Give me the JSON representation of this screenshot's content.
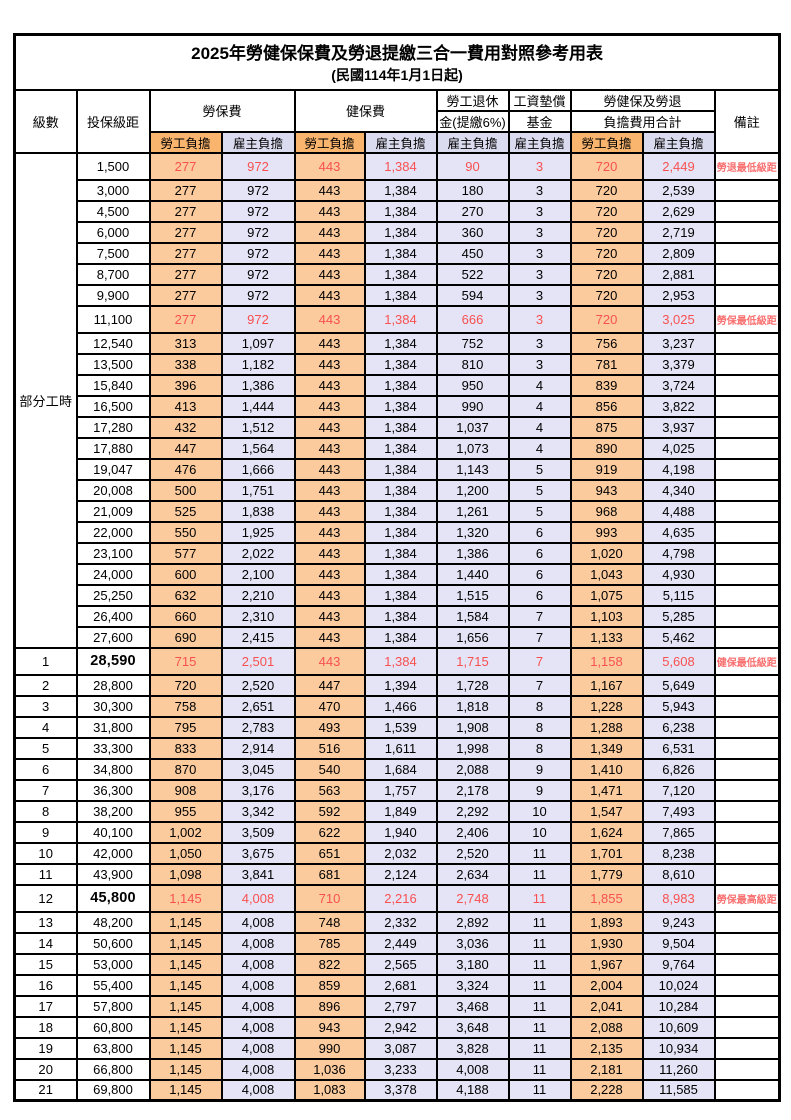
{
  "title": "2025年勞健保保費及勞退提繳三合一費用對照參考用表",
  "subtitle": "(民國114年1月1日起)",
  "header": {
    "level": "級數",
    "bracket": "投保級距",
    "labor_fee": "勞保費",
    "health_fee": "健保費",
    "pension_line1": "勞工退休",
    "pension_line2": "金(提繳6%)",
    "wage_fund_line1": "工資墊償",
    "wage_fund_line2": "基金",
    "total_line1": "勞健保及勞退",
    "total_line2": "負擔費用合計",
    "remark": "備註",
    "employee": "勞工負擔",
    "employer": "雇主負擔"
  },
  "part_time_label": "部分工時",
  "part_time_rowspan": 23,
  "colors": {
    "employee_header_bg": "#f9b56e",
    "employer_header_bg": "#dbdbef",
    "employee_cell_bg": "#fbcb9e",
    "employer_cell_bg": "#e4e4f6",
    "highlight_value_text": "#f85050",
    "remark_text": "#f97070",
    "border": "#000000"
  },
  "rows": [
    {
      "level": "",
      "bracket": "1,500",
      "values": [
        "277",
        "972",
        "443",
        "1,384",
        "90",
        "3",
        "720",
        "2,449"
      ],
      "remark": "勞退最低級距",
      "highlight": true,
      "tall": true,
      "bold_bracket": false
    },
    {
      "level": "",
      "bracket": "3,000",
      "values": [
        "277",
        "972",
        "443",
        "1,384",
        "180",
        "3",
        "720",
        "2,539"
      ],
      "remark": "",
      "highlight": false,
      "tall": false,
      "bold_bracket": false
    },
    {
      "level": "",
      "bracket": "4,500",
      "values": [
        "277",
        "972",
        "443",
        "1,384",
        "270",
        "3",
        "720",
        "2,629"
      ],
      "remark": "",
      "highlight": false,
      "tall": false,
      "bold_bracket": false
    },
    {
      "level": "",
      "bracket": "6,000",
      "values": [
        "277",
        "972",
        "443",
        "1,384",
        "360",
        "3",
        "720",
        "2,719"
      ],
      "remark": "",
      "highlight": false,
      "tall": false,
      "bold_bracket": false
    },
    {
      "level": "",
      "bracket": "7,500",
      "values": [
        "277",
        "972",
        "443",
        "1,384",
        "450",
        "3",
        "720",
        "2,809"
      ],
      "remark": "",
      "highlight": false,
      "tall": false,
      "bold_bracket": false
    },
    {
      "level": "",
      "bracket": "8,700",
      "values": [
        "277",
        "972",
        "443",
        "1,384",
        "522",
        "3",
        "720",
        "2,881"
      ],
      "remark": "",
      "highlight": false,
      "tall": false,
      "bold_bracket": false
    },
    {
      "level": "",
      "bracket": "9,900",
      "values": [
        "277",
        "972",
        "443",
        "1,384",
        "594",
        "3",
        "720",
        "2,953"
      ],
      "remark": "",
      "highlight": false,
      "tall": false,
      "bold_bracket": false
    },
    {
      "level": "",
      "bracket": "11,100",
      "values": [
        "277",
        "972",
        "443",
        "1,384",
        "666",
        "3",
        "720",
        "3,025"
      ],
      "remark": "勞保最低級距",
      "highlight": true,
      "tall": true,
      "bold_bracket": false
    },
    {
      "level": "",
      "bracket": "12,540",
      "values": [
        "313",
        "1,097",
        "443",
        "1,384",
        "752",
        "3",
        "756",
        "3,237"
      ],
      "remark": "",
      "highlight": false,
      "tall": false,
      "bold_bracket": false
    },
    {
      "level": "",
      "bracket": "13,500",
      "values": [
        "338",
        "1,182",
        "443",
        "1,384",
        "810",
        "3",
        "781",
        "3,379"
      ],
      "remark": "",
      "highlight": false,
      "tall": false,
      "bold_bracket": false
    },
    {
      "level": "",
      "bracket": "15,840",
      "values": [
        "396",
        "1,386",
        "443",
        "1,384",
        "950",
        "4",
        "839",
        "3,724"
      ],
      "remark": "",
      "highlight": false,
      "tall": false,
      "bold_bracket": false
    },
    {
      "level": "",
      "bracket": "16,500",
      "values": [
        "413",
        "1,444",
        "443",
        "1,384",
        "990",
        "4",
        "856",
        "3,822"
      ],
      "remark": "",
      "highlight": false,
      "tall": false,
      "bold_bracket": false
    },
    {
      "level": "",
      "bracket": "17,280",
      "values": [
        "432",
        "1,512",
        "443",
        "1,384",
        "1,037",
        "4",
        "875",
        "3,937"
      ],
      "remark": "",
      "highlight": false,
      "tall": false,
      "bold_bracket": false
    },
    {
      "level": "",
      "bracket": "17,880",
      "values": [
        "447",
        "1,564",
        "443",
        "1,384",
        "1,073",
        "4",
        "890",
        "4,025"
      ],
      "remark": "",
      "highlight": false,
      "tall": false,
      "bold_bracket": false
    },
    {
      "level": "",
      "bracket": "19,047",
      "values": [
        "476",
        "1,666",
        "443",
        "1,384",
        "1,143",
        "5",
        "919",
        "4,198"
      ],
      "remark": "",
      "highlight": false,
      "tall": false,
      "bold_bracket": false
    },
    {
      "level": "",
      "bracket": "20,008",
      "values": [
        "500",
        "1,751",
        "443",
        "1,384",
        "1,200",
        "5",
        "943",
        "4,340"
      ],
      "remark": "",
      "highlight": false,
      "tall": false,
      "bold_bracket": false
    },
    {
      "level": "",
      "bracket": "21,009",
      "values": [
        "525",
        "1,838",
        "443",
        "1,384",
        "1,261",
        "5",
        "968",
        "4,488"
      ],
      "remark": "",
      "highlight": false,
      "tall": false,
      "bold_bracket": false
    },
    {
      "level": "",
      "bracket": "22,000",
      "values": [
        "550",
        "1,925",
        "443",
        "1,384",
        "1,320",
        "6",
        "993",
        "4,635"
      ],
      "remark": "",
      "highlight": false,
      "tall": false,
      "bold_bracket": false
    },
    {
      "level": "",
      "bracket": "23,100",
      "values": [
        "577",
        "2,022",
        "443",
        "1,384",
        "1,386",
        "6",
        "1,020",
        "4,798"
      ],
      "remark": "",
      "highlight": false,
      "tall": false,
      "bold_bracket": false
    },
    {
      "level": "",
      "bracket": "24,000",
      "values": [
        "600",
        "2,100",
        "443",
        "1,384",
        "1,440",
        "6",
        "1,043",
        "4,930"
      ],
      "remark": "",
      "highlight": false,
      "tall": false,
      "bold_bracket": false
    },
    {
      "level": "",
      "bracket": "25,250",
      "values": [
        "632",
        "2,210",
        "443",
        "1,384",
        "1,515",
        "6",
        "1,075",
        "5,115"
      ],
      "remark": "",
      "highlight": false,
      "tall": false,
      "bold_bracket": false
    },
    {
      "level": "",
      "bracket": "26,400",
      "values": [
        "660",
        "2,310",
        "443",
        "1,384",
        "1,584",
        "7",
        "1,103",
        "5,285"
      ],
      "remark": "",
      "highlight": false,
      "tall": false,
      "bold_bracket": false
    },
    {
      "level": "",
      "bracket": "27,600",
      "values": [
        "690",
        "2,415",
        "443",
        "1,384",
        "1,656",
        "7",
        "1,133",
        "5,462"
      ],
      "remark": "",
      "highlight": false,
      "tall": false,
      "bold_bracket": false
    },
    {
      "level": "1",
      "bracket": "28,590",
      "values": [
        "715",
        "2,501",
        "443",
        "1,384",
        "1,715",
        "7",
        "1,158",
        "5,608"
      ],
      "remark": "健保最低級距",
      "highlight": true,
      "tall": true,
      "bold_bracket": true
    },
    {
      "level": "2",
      "bracket": "28,800",
      "values": [
        "720",
        "2,520",
        "447",
        "1,394",
        "1,728",
        "7",
        "1,167",
        "5,649"
      ],
      "remark": "",
      "highlight": false,
      "tall": false,
      "bold_bracket": false
    },
    {
      "level": "3",
      "bracket": "30,300",
      "values": [
        "758",
        "2,651",
        "470",
        "1,466",
        "1,818",
        "8",
        "1,228",
        "5,943"
      ],
      "remark": "",
      "highlight": false,
      "tall": false,
      "bold_bracket": false
    },
    {
      "level": "4",
      "bracket": "31,800",
      "values": [
        "795",
        "2,783",
        "493",
        "1,539",
        "1,908",
        "8",
        "1,288",
        "6,238"
      ],
      "remark": "",
      "highlight": false,
      "tall": false,
      "bold_bracket": false
    },
    {
      "level": "5",
      "bracket": "33,300",
      "values": [
        "833",
        "2,914",
        "516",
        "1,611",
        "1,998",
        "8",
        "1,349",
        "6,531"
      ],
      "remark": "",
      "highlight": false,
      "tall": false,
      "bold_bracket": false
    },
    {
      "level": "6",
      "bracket": "34,800",
      "values": [
        "870",
        "3,045",
        "540",
        "1,684",
        "2,088",
        "9",
        "1,410",
        "6,826"
      ],
      "remark": "",
      "highlight": false,
      "tall": false,
      "bold_bracket": false
    },
    {
      "level": "7",
      "bracket": "36,300",
      "values": [
        "908",
        "3,176",
        "563",
        "1,757",
        "2,178",
        "9",
        "1,471",
        "7,120"
      ],
      "remark": "",
      "highlight": false,
      "tall": false,
      "bold_bracket": false
    },
    {
      "level": "8",
      "bracket": "38,200",
      "values": [
        "955",
        "3,342",
        "592",
        "1,849",
        "2,292",
        "10",
        "1,547",
        "7,493"
      ],
      "remark": "",
      "highlight": false,
      "tall": false,
      "bold_bracket": false
    },
    {
      "level": "9",
      "bracket": "40,100",
      "values": [
        "1,002",
        "3,509",
        "622",
        "1,940",
        "2,406",
        "10",
        "1,624",
        "7,865"
      ],
      "remark": "",
      "highlight": false,
      "tall": false,
      "bold_bracket": false
    },
    {
      "level": "10",
      "bracket": "42,000",
      "values": [
        "1,050",
        "3,675",
        "651",
        "2,032",
        "2,520",
        "11",
        "1,701",
        "8,238"
      ],
      "remark": "",
      "highlight": false,
      "tall": false,
      "bold_bracket": false
    },
    {
      "level": "11",
      "bracket": "43,900",
      "values": [
        "1,098",
        "3,841",
        "681",
        "2,124",
        "2,634",
        "11",
        "1,779",
        "8,610"
      ],
      "remark": "",
      "highlight": false,
      "tall": false,
      "bold_bracket": false
    },
    {
      "level": "12",
      "bracket": "45,800",
      "values": [
        "1,145",
        "4,008",
        "710",
        "2,216",
        "2,748",
        "11",
        "1,855",
        "8,983"
      ],
      "remark": "勞保最高級距",
      "highlight": true,
      "tall": true,
      "bold_bracket": true
    },
    {
      "level": "13",
      "bracket": "48,200",
      "values": [
        "1,145",
        "4,008",
        "748",
        "2,332",
        "2,892",
        "11",
        "1,893",
        "9,243"
      ],
      "remark": "",
      "highlight": false,
      "tall": false,
      "bold_bracket": false
    },
    {
      "level": "14",
      "bracket": "50,600",
      "values": [
        "1,145",
        "4,008",
        "785",
        "2,449",
        "3,036",
        "11",
        "1,930",
        "9,504"
      ],
      "remark": "",
      "highlight": false,
      "tall": false,
      "bold_bracket": false
    },
    {
      "level": "15",
      "bracket": "53,000",
      "values": [
        "1,145",
        "4,008",
        "822",
        "2,565",
        "3,180",
        "11",
        "1,967",
        "9,764"
      ],
      "remark": "",
      "highlight": false,
      "tall": false,
      "bold_bracket": false
    },
    {
      "level": "16",
      "bracket": "55,400",
      "values": [
        "1,145",
        "4,008",
        "859",
        "2,681",
        "3,324",
        "11",
        "2,004",
        "10,024"
      ],
      "remark": "",
      "highlight": false,
      "tall": false,
      "bold_bracket": false
    },
    {
      "level": "17",
      "bracket": "57,800",
      "values": [
        "1,145",
        "4,008",
        "896",
        "2,797",
        "3,468",
        "11",
        "2,041",
        "10,284"
      ],
      "remark": "",
      "highlight": false,
      "tall": false,
      "bold_bracket": false
    },
    {
      "level": "18",
      "bracket": "60,800",
      "values": [
        "1,145",
        "4,008",
        "943",
        "2,942",
        "3,648",
        "11",
        "2,088",
        "10,609"
      ],
      "remark": "",
      "highlight": false,
      "tall": false,
      "bold_bracket": false
    },
    {
      "level": "19",
      "bracket": "63,800",
      "values": [
        "1,145",
        "4,008",
        "990",
        "3,087",
        "3,828",
        "11",
        "2,135",
        "10,934"
      ],
      "remark": "",
      "highlight": false,
      "tall": false,
      "bold_bracket": false
    },
    {
      "level": "20",
      "bracket": "66,800",
      "values": [
        "1,145",
        "4,008",
        "1,036",
        "3,233",
        "4,008",
        "11",
        "2,181",
        "11,260"
      ],
      "remark": "",
      "highlight": false,
      "tall": false,
      "bold_bracket": false
    },
    {
      "level": "21",
      "bracket": "69,800",
      "values": [
        "1,145",
        "4,008",
        "1,083",
        "3,378",
        "4,188",
        "11",
        "2,228",
        "11,585"
      ],
      "remark": "",
      "highlight": false,
      "tall": false,
      "bold_bracket": false
    }
  ]
}
